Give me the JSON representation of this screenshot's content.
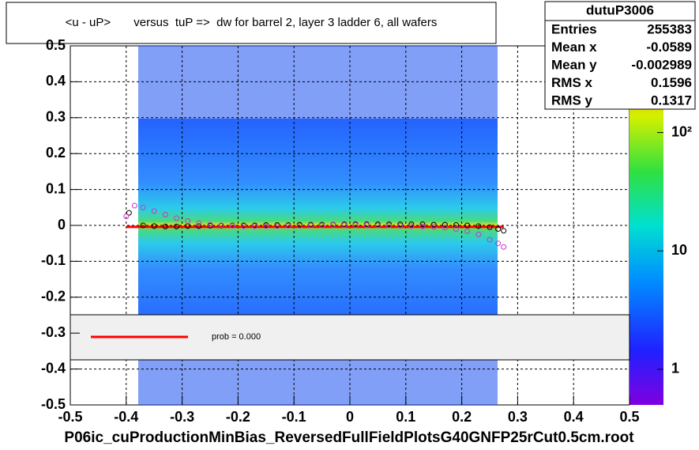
{
  "chart_data": {
    "type": "hist2d",
    "title": "<u - uP>       versus  tuP =>  dw for barrel 2, layer 3 ladder 6, all wafers",
    "footer": "P06ic_cuProductionMinBias_ReversedFullFieldPlotsG40GNFP25rCut0.5cm.root",
    "xlim": [
      -0.5,
      0.5
    ],
    "ylim": [
      -0.5,
      0.5
    ],
    "xticks": [
      -0.5,
      -0.4,
      -0.3,
      -0.2,
      -0.1,
      0,
      0.1,
      0.2,
      0.3,
      0.4,
      0.5
    ],
    "yticks": [
      -0.5,
      -0.4,
      -0.3,
      -0.2,
      -0.1,
      0,
      0.1,
      0.2,
      0.3,
      0.4,
      0.5
    ],
    "grid": true,
    "zlog": true,
    "zlim": [
      0.5,
      540
    ],
    "zticks": [
      {
        "value": 1,
        "label": "1"
      },
      {
        "value": 10,
        "label": "10"
      },
      {
        "value": 100,
        "label": "10²"
      }
    ],
    "series": [
      {
        "color": "#000000",
        "x": [
          -0.395,
          -0.37,
          -0.35,
          -0.33,
          -0.31,
          -0.29,
          -0.27,
          -0.25,
          -0.23,
          -0.21,
          -0.19,
          -0.17,
          -0.15,
          -0.13,
          -0.11,
          -0.09,
          -0.07,
          -0.05,
          -0.03,
          -0.01,
          0.01,
          0.03,
          0.05,
          0.07,
          0.09,
          0.11,
          0.13,
          0.15,
          0.17,
          0.19,
          0.21,
          0.23,
          0.25,
          0.265,
          0.275
        ],
        "values": [
          0.035,
          0.0,
          -0.002,
          -0.003,
          -0.003,
          -0.002,
          -0.002,
          -0.001,
          -0.001,
          0.0,
          0.0,
          0.0,
          0.001,
          0.001,
          0.001,
          0.002,
          0.002,
          0.002,
          0.002,
          0.003,
          0.003,
          0.003,
          0.003,
          0.003,
          0.003,
          0.003,
          0.003,
          0.002,
          0.002,
          0.001,
          0.0,
          -0.002,
          -0.005,
          -0.01,
          -0.015
        ]
      },
      {
        "color": "#cc33cc",
        "x": [
          -0.4,
          -0.385,
          -0.37,
          -0.35,
          -0.33,
          -0.31,
          -0.29,
          -0.27,
          -0.25,
          -0.23,
          -0.21,
          -0.19,
          -0.17,
          -0.15,
          -0.13,
          -0.11,
          -0.09,
          -0.07,
          -0.05,
          -0.03,
          -0.01,
          0.01,
          0.03,
          0.05,
          0.07,
          0.09,
          0.11,
          0.13,
          0.15,
          0.17,
          0.19,
          0.21,
          0.23,
          0.25,
          0.265,
          0.275
        ],
        "values": [
          0.025,
          0.055,
          0.05,
          0.04,
          0.03,
          0.02,
          0.012,
          0.006,
          0.002,
          0.0,
          -0.001,
          -0.002,
          -0.002,
          -0.002,
          -0.002,
          -0.001,
          -0.001,
          0.0,
          0.0,
          0.001,
          0.001,
          0.001,
          0.001,
          0.0,
          0.0,
          -0.001,
          -0.002,
          -0.003,
          -0.004,
          -0.006,
          -0.01,
          -0.016,
          -0.025,
          -0.04,
          -0.05,
          -0.06
        ]
      }
    ],
    "fit": {
      "color": "#ff0000",
      "x": [
        -0.4,
        0.275
      ],
      "values": [
        -0.004,
        -0.004
      ]
    },
    "legend": {
      "label": "prob = 0.000"
    },
    "stats": {
      "title": "dutuP3006",
      "rows": [
        [
          "Entries",
          255383
        ],
        [
          "Mean x",
          -0.0589
        ],
        [
          "Mean y",
          -0.002989
        ],
        [
          "RMS x",
          0.1596
        ],
        [
          "RMS y",
          0.1317
        ]
      ]
    }
  }
}
